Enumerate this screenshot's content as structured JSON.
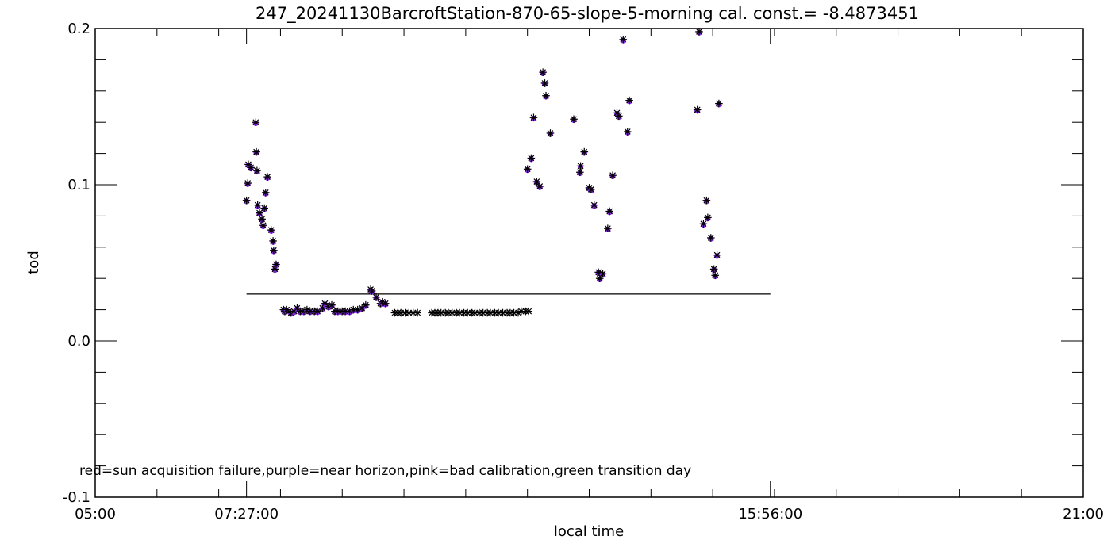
{
  "chart_data": {
    "type": "scatter",
    "title": "247_20241130BarcroftStation-870-65-slope-5-morning cal. const.= -8.4873451",
    "xlabel": "local time",
    "ylabel": "tod",
    "x_unit": "hours",
    "xlim": [
      5,
      21
    ],
    "ylim": [
      -0.1,
      0.2
    ],
    "x_ticks": [
      {
        "value": 5,
        "label": "05:00"
      },
      {
        "value": 7.45,
        "label": "07:27:00"
      },
      {
        "value": 15.9333333333,
        "label": "15:56:00"
      },
      {
        "value": 21,
        "label": "21:00"
      }
    ],
    "y_ticks": [
      {
        "value": -0.1,
        "label": "-0.1"
      },
      {
        "value": 0.0,
        "label": "0.0"
      },
      {
        "value": 0.1,
        "label": "0.1"
      },
      {
        "value": 0.2,
        "label": "0.2"
      }
    ],
    "y_minor_step": 0.02,
    "x_minor_step": 1,
    "reference_line": {
      "x_start": 7.45,
      "x_end": 15.9333333333,
      "y": 0.03
    },
    "legend_text": "red=sun acquisition failure,purple=near horizon,pink=bad calibration,green transition day",
    "colors": {
      "axis": "#000000",
      "points": "#000000",
      "near_horizon": "#8a2be2"
    },
    "series": [
      {
        "flag": "near horizon",
        "color": "#8a2be2",
        "points": [
          [
            7.45,
            0.09
          ],
          [
            7.47,
            0.101
          ],
          [
            7.48,
            0.113
          ],
          [
            7.52,
            0.111
          ],
          [
            7.6,
            0.14
          ],
          [
            7.61,
            0.121
          ],
          [
            7.62,
            0.109
          ],
          [
            7.63,
            0.087
          ],
          [
            7.66,
            0.082
          ],
          [
            7.7,
            0.078
          ],
          [
            7.72,
            0.074
          ],
          [
            7.74,
            0.085
          ],
          [
            7.76,
            0.095
          ],
          [
            7.79,
            0.105
          ],
          [
            7.85,
            0.071
          ],
          [
            7.88,
            0.064
          ],
          [
            7.89,
            0.058
          ],
          [
            7.91,
            0.046
          ],
          [
            7.93,
            0.049
          ],
          [
            8.05,
            0.02
          ],
          [
            8.07,
            0.019
          ],
          [
            8.1,
            0.02
          ],
          [
            8.17,
            0.018
          ],
          [
            8.22,
            0.019
          ],
          [
            8.27,
            0.021
          ],
          [
            8.32,
            0.019
          ],
          [
            8.38,
            0.019
          ],
          [
            8.43,
            0.02
          ],
          [
            8.48,
            0.019
          ],
          [
            8.55,
            0.019
          ],
          [
            8.6,
            0.019
          ],
          [
            8.68,
            0.021
          ],
          [
            8.72,
            0.024
          ],
          [
            8.78,
            0.022
          ],
          [
            8.83,
            0.023
          ],
          [
            8.88,
            0.019
          ],
          [
            8.93,
            0.019
          ],
          [
            9.0,
            0.019
          ],
          [
            9.05,
            0.019
          ],
          [
            9.12,
            0.019
          ],
          [
            9.18,
            0.02
          ],
          [
            9.25,
            0.02
          ],
          [
            9.32,
            0.021
          ],
          [
            9.38,
            0.023
          ],
          [
            9.46,
            0.033
          ],
          [
            9.48,
            0.032
          ],
          [
            9.55,
            0.028
          ],
          [
            9.62,
            0.024
          ],
          [
            9.65,
            0.025
          ],
          [
            9.7,
            0.024
          ],
          [
            12.0,
            0.11
          ],
          [
            12.06,
            0.117
          ],
          [
            12.1,
            0.143
          ],
          [
            12.15,
            0.102
          ],
          [
            12.2,
            0.099
          ],
          [
            12.25,
            0.172
          ],
          [
            12.28,
            0.165
          ],
          [
            12.3,
            0.157
          ],
          [
            12.37,
            0.133
          ],
          [
            12.75,
            0.142
          ],
          [
            12.85,
            0.108
          ],
          [
            12.86,
            0.112
          ],
          [
            12.92,
            0.121
          ],
          [
            13.0,
            0.098
          ],
          [
            13.03,
            0.097
          ],
          [
            13.08,
            0.087
          ],
          [
            13.15,
            0.044
          ],
          [
            13.17,
            0.04
          ],
          [
            13.22,
            0.043
          ],
          [
            13.3,
            0.072
          ],
          [
            13.33,
            0.083
          ],
          [
            13.38,
            0.106
          ],
          [
            13.45,
            0.146
          ],
          [
            13.48,
            0.144
          ],
          [
            13.55,
            0.193
          ],
          [
            13.62,
            0.134
          ],
          [
            13.65,
            0.154
          ],
          [
            14.75,
            0.148
          ],
          [
            14.78,
            0.198
          ],
          [
            14.85,
            0.075
          ],
          [
            14.9,
            0.09
          ],
          [
            14.92,
            0.079
          ],
          [
            14.97,
            0.066
          ],
          [
            15.02,
            0.046
          ],
          [
            15.04,
            0.042
          ],
          [
            15.07,
            0.055
          ],
          [
            15.1,
            0.152
          ]
        ]
      },
      {
        "flag": "normal",
        "color": "#000000",
        "points": [
          [
            9.85,
            0.018
          ],
          [
            9.9,
            0.018
          ],
          [
            9.95,
            0.018
          ],
          [
            10.02,
            0.018
          ],
          [
            10.08,
            0.018
          ],
          [
            10.15,
            0.018
          ],
          [
            10.22,
            0.018
          ],
          [
            10.45,
            0.018
          ],
          [
            10.5,
            0.018
          ],
          [
            10.55,
            0.018
          ],
          [
            10.6,
            0.018
          ],
          [
            10.67,
            0.018
          ],
          [
            10.72,
            0.018
          ],
          [
            10.78,
            0.018
          ],
          [
            10.85,
            0.018
          ],
          [
            10.9,
            0.018
          ],
          [
            10.97,
            0.018
          ],
          [
            11.03,
            0.018
          ],
          [
            11.1,
            0.018
          ],
          [
            11.15,
            0.018
          ],
          [
            11.22,
            0.018
          ],
          [
            11.28,
            0.018
          ],
          [
            11.35,
            0.018
          ],
          [
            11.4,
            0.018
          ],
          [
            11.47,
            0.018
          ],
          [
            11.53,
            0.018
          ],
          [
            11.6,
            0.018
          ],
          [
            11.67,
            0.018
          ],
          [
            11.72,
            0.018
          ],
          [
            11.78,
            0.018
          ],
          [
            11.85,
            0.018
          ],
          [
            11.9,
            0.019
          ],
          [
            11.97,
            0.019
          ],
          [
            12.02,
            0.019
          ]
        ]
      }
    ]
  }
}
